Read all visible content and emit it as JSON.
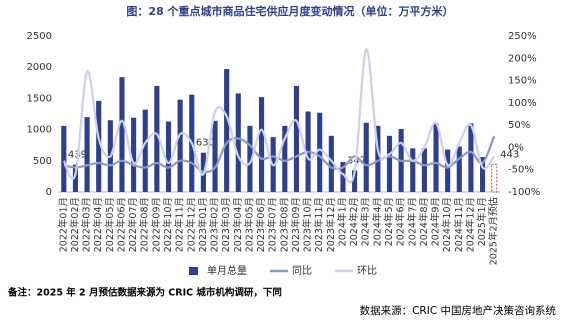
{
  "chart_data": {
    "type": "bar-line",
    "title": "图：28 个重点城市商品住宅供应月度变动情况（单位：万平方米）",
    "note": "备注：2025 年 2 月预估数据来源为 CRIC 城市机构调研，下同",
    "source": "数据来源：CRIC 中国房地产决策咨询系统",
    "categories": [
      "2022年01月",
      "2022年02月",
      "2022年03月",
      "2022年04月",
      "2022年05月",
      "2022年06月",
      "2022年07月",
      "2022年08月",
      "2022年09月",
      "2022年10月",
      "2022年11月",
      "2022年12月",
      "2023年01月",
      "2023年02月",
      "2023年03月",
      "2023年04月",
      "2023年05月",
      "2023年06月",
      "2023年07月",
      "2023年08月",
      "2023年09月",
      "2023年10月",
      "2023年11月",
      "2023年12月",
      "2024年1月",
      "2024年2月",
      "2024年3月",
      "2024年4月",
      "2024年5月",
      "2024年6月",
      "2024年7月",
      "2024年8月",
      "2024年9月",
      "2024年10月",
      "2024年11月",
      "2024年12月",
      "2025年1月",
      "2025年2月预估"
    ],
    "series": [
      {
        "name": "单月总量",
        "color": "#2e3f8f",
        "estimate_color": "#e0533a",
        "values": [
          1060,
          439,
          1200,
          1460,
          1150,
          1840,
          1190,
          1320,
          1700,
          1130,
          1480,
          1560,
          630,
          1140,
          1970,
          1580,
          1060,
          1520,
          880,
          1060,
          1700,
          1290,
          1270,
          900,
          480,
          347,
          1110,
          1060,
          900,
          1010,
          700,
          700,
          1100,
          680,
          730,
          1100,
          560,
          443
        ],
        "value_labels": [
          null,
          "439",
          null,
          null,
          null,
          null,
          null,
          null,
          null,
          null,
          null,
          null,
          "630",
          null,
          null,
          null,
          null,
          null,
          null,
          null,
          null,
          null,
          null,
          null,
          null,
          "347",
          null,
          null,
          null,
          null,
          null,
          null,
          null,
          null,
          null,
          null,
          null,
          "443"
        ]
      },
      {
        "name": "同比",
        "color": "#8e9ac6",
        "axis": "y2",
        "values": [
          -40,
          -45,
          -40,
          -35,
          -40,
          -30,
          -40,
          -45,
          -35,
          -45,
          -30,
          -35,
          -55,
          -45,
          10,
          20,
          5,
          -25,
          -20,
          -30,
          -20,
          -10,
          -20,
          -45,
          -45,
          -20,
          -40,
          -30,
          -20,
          -30,
          -30,
          -40,
          -35,
          -45,
          -25,
          -10,
          -35,
          25
        ]
      },
      {
        "name": "环比",
        "color": "#cdd1ea",
        "axis": "y2",
        "values": [
          -30,
          -60,
          170,
          20,
          -20,
          60,
          -35,
          10,
          30,
          -35,
          30,
          10,
          -60,
          80,
          70,
          -20,
          -35,
          40,
          -40,
          20,
          60,
          -25,
          -5,
          -30,
          -60,
          -55,
          220,
          -5,
          -15,
          10,
          -30,
          0,
          55,
          -40,
          10,
          50,
          -45,
          -20
        ]
      }
    ],
    "ylim": [
      0,
      2500
    ],
    "yticks": [
      0,
      500,
      1000,
      1500,
      2000,
      2500
    ],
    "y2lim": [
      -100,
      250
    ],
    "y2ticks": [
      {
        "value": -100,
        "label": "-100%"
      },
      {
        "value": -50,
        "label": "-50%"
      },
      {
        "value": 0,
        "label": "0%"
      },
      {
        "value": 50,
        "label": "50%"
      },
      {
        "value": 100,
        "label": "100%"
      },
      {
        "value": 150,
        "label": "150%"
      },
      {
        "value": 200,
        "label": "200%"
      },
      {
        "value": 250,
        "label": "250%"
      }
    ]
  }
}
